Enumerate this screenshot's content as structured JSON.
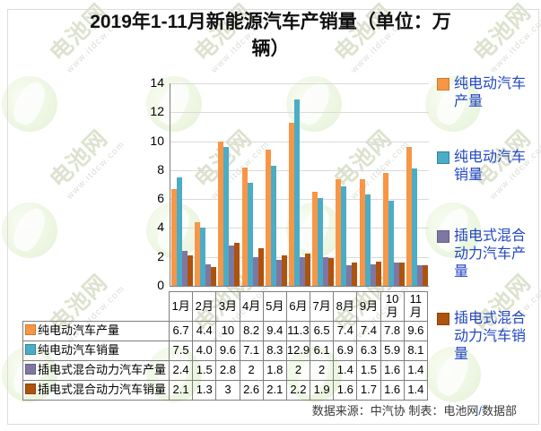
{
  "title": "2019年1-11月新能源汽车产销量（单位：万辆）",
  "watermark": {
    "brand": "电池网",
    "url": "www.itdcw.com"
  },
  "chart_data": {
    "type": "bar",
    "title": "2019年1-11月新能源汽车产销量（单位：万辆）",
    "unit": "万辆",
    "xlabel": "",
    "ylabel": "",
    "ylim": [
      0,
      14
    ],
    "yticks": [
      0,
      2,
      4,
      6,
      8,
      10,
      12,
      14
    ],
    "grid": true,
    "legend_position": "right",
    "data_table_shown": true,
    "categories": [
      "1月",
      "2月",
      "3月",
      "4月",
      "5月",
      "6月",
      "7月",
      "8月",
      "9月",
      "10月",
      "11月"
    ],
    "series": [
      {
        "name": "纯电动汽车产量",
        "key": "bev-production",
        "color": "#F79646",
        "border": "#CE7B2B",
        "values": [
          6.7,
          4.4,
          10,
          8.2,
          9.4,
          11.3,
          6.5,
          7.4,
          7.4,
          7.8,
          9.6
        ],
        "labels": [
          "6.7",
          "4.4",
          "10",
          "8.2",
          "9.4",
          "11.3",
          "6.5",
          "7.4",
          "7.4",
          "7.8",
          "9.6"
        ]
      },
      {
        "name": "纯电动汽车销量",
        "key": "bev-sales",
        "color": "#4BACC6",
        "border": "#35859C",
        "values": [
          7.5,
          4.0,
          9.6,
          7.1,
          8.3,
          12.9,
          6.1,
          6.9,
          6.3,
          5.9,
          8.1
        ],
        "labels": [
          "7.5",
          "4.0",
          "9.6",
          "7.1",
          "8.3",
          "12.9",
          "6.1",
          "6.9",
          "6.3",
          "5.9",
          "8.1"
        ]
      },
      {
        "name": "插电式混合动力汽车产量",
        "key": "phev-production",
        "color": "#8076A2",
        "border": "#675E86",
        "values": [
          2.4,
          1.5,
          2.8,
          2,
          1.8,
          2,
          2,
          1.4,
          1.5,
          1.6,
          1.4
        ],
        "labels": [
          "2.4",
          "1.5",
          "2.8",
          "2",
          "1.8",
          "2",
          "2",
          "1.4",
          "1.5",
          "1.6",
          "1.4"
        ]
      },
      {
        "name": "插电式混合动力汽车销量",
        "key": "phev-sales",
        "color": "#AD530D",
        "border": "#8A430B",
        "values": [
          2.1,
          1.3,
          3,
          2.6,
          2.1,
          2.2,
          1.9,
          1.6,
          1.7,
          1.6,
          1.4
        ],
        "labels": [
          "2.1",
          "1.3",
          "3",
          "2.6",
          "2.1",
          "2.2",
          "1.9",
          "1.6",
          "1.7",
          "1.6",
          "1.4"
        ]
      }
    ]
  },
  "footer": {
    "prefix": "数据来源：中汽协 制表：电池网",
    "slash": "/",
    "suffix": "数据部"
  }
}
